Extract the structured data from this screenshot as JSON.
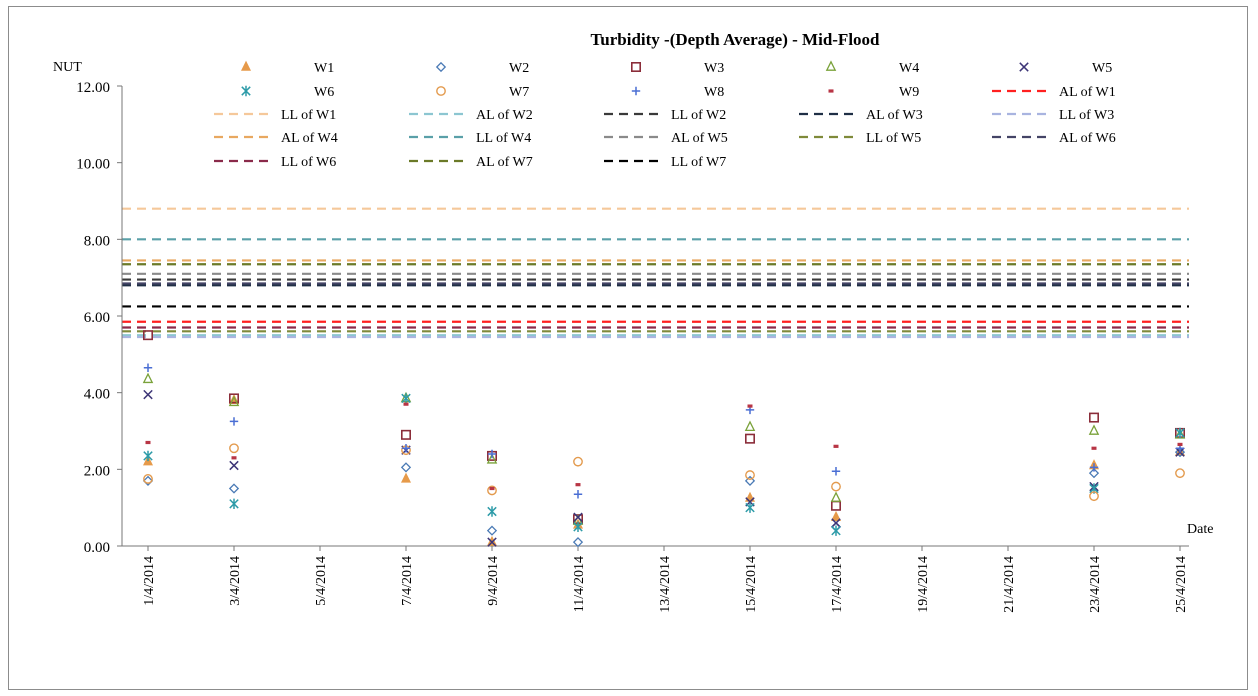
{
  "chart_data": {
    "type": "scatter",
    "title": "Turbidity -(Depth Average) - Mid-Flood",
    "ylabel": "NUT",
    "xlabel": "Date",
    "ylim": [
      0,
      12
    ],
    "yticks": [
      "0.00",
      "2.00",
      "4.00",
      "6.00",
      "8.00",
      "10.00",
      "12.00"
    ],
    "ytick_values": [
      0,
      2,
      4,
      6,
      8,
      10,
      12
    ],
    "xticks": [
      "1/4/2014",
      "3/4/2014",
      "5/4/2014",
      "7/4/2014",
      "9/4/2014",
      "11/4/2014",
      "13/4/2014",
      "15/4/2014",
      "17/4/2014",
      "19/4/2014",
      "21/4/2014",
      "23/4/2014",
      "25/4/2014"
    ],
    "x_day_range": [
      1,
      25
    ],
    "grid": false,
    "legend_position": "top",
    "point_series": [
      {
        "name": "W1",
        "marker": "triangle-filled",
        "color": "#e69a4a",
        "points": [
          [
            1,
            2.2
          ],
          [
            3,
            3.8
          ],
          [
            7,
            1.75
          ],
          [
            9,
            0.1
          ],
          [
            11,
            0.55
          ],
          [
            15,
            1.25
          ],
          [
            17,
            0.75
          ],
          [
            23,
            2.1
          ],
          [
            25,
            2.45
          ]
        ]
      },
      {
        "name": "W2",
        "marker": "diamond",
        "color": "#4a7ab5",
        "points": [
          [
            1,
            1.7
          ],
          [
            3,
            1.5
          ],
          [
            7,
            2.05
          ],
          [
            9,
            0.4
          ],
          [
            11,
            0.1
          ],
          [
            15,
            1.7
          ],
          [
            17,
            0.5
          ],
          [
            23,
            1.9
          ],
          [
            25,
            2.45
          ]
        ]
      },
      {
        "name": "W3",
        "marker": "square",
        "color": "#8b2d3a",
        "points": [
          [
            1,
            5.5
          ],
          [
            3,
            3.85
          ],
          [
            7,
            2.9
          ],
          [
            9,
            2.35
          ],
          [
            11,
            0.7
          ],
          [
            15,
            2.8
          ],
          [
            17,
            1.05
          ],
          [
            23,
            3.35
          ],
          [
            25,
            2.95
          ]
        ]
      },
      {
        "name": "W4",
        "marker": "triangle",
        "color": "#7aa23a",
        "points": [
          [
            1,
            4.35
          ],
          [
            3,
            3.75
          ],
          [
            7,
            3.85
          ],
          [
            9,
            2.25
          ],
          [
            11,
            0.65
          ],
          [
            15,
            3.1
          ],
          [
            17,
            1.25
          ],
          [
            23,
            3.0
          ],
          [
            25,
            2.9
          ]
        ]
      },
      {
        "name": "W5",
        "marker": "x",
        "color": "#3d3577",
        "points": [
          [
            1,
            3.95
          ],
          [
            3,
            2.1
          ],
          [
            7,
            2.5
          ],
          [
            9,
            0.1
          ],
          [
            11,
            0.75
          ],
          [
            15,
            1.15
          ],
          [
            17,
            0.6
          ],
          [
            23,
            1.55
          ],
          [
            25,
            2.45
          ]
        ]
      },
      {
        "name": "W6",
        "marker": "asterisk",
        "color": "#2d9ba8",
        "points": [
          [
            1,
            2.35
          ],
          [
            3,
            1.1
          ],
          [
            7,
            3.85
          ],
          [
            9,
            0.9
          ],
          [
            11,
            0.5
          ],
          [
            15,
            1.0
          ],
          [
            17,
            0.4
          ],
          [
            23,
            1.5
          ],
          [
            25,
            2.95
          ]
        ]
      },
      {
        "name": "W7",
        "marker": "circle",
        "color": "#e39a4d",
        "points": [
          [
            1,
            1.75
          ],
          [
            3,
            2.55
          ],
          [
            7,
            2.5
          ],
          [
            9,
            1.45
          ],
          [
            11,
            2.2
          ],
          [
            15,
            1.85
          ],
          [
            17,
            1.55
          ],
          [
            23,
            1.3
          ],
          [
            25,
            1.9
          ]
        ]
      },
      {
        "name": "W8",
        "marker": "plus",
        "color": "#4a6ed4",
        "points": [
          [
            1,
            4.65
          ],
          [
            3,
            3.25
          ],
          [
            7,
            2.55
          ],
          [
            9,
            2.4
          ],
          [
            11,
            1.35
          ],
          [
            15,
            3.55
          ],
          [
            17,
            1.95
          ],
          [
            23,
            2.05
          ],
          [
            25,
            2.55
          ]
        ]
      },
      {
        "name": "W9",
        "marker": "dash",
        "color": "#b83545",
        "points": [
          [
            1,
            2.7
          ],
          [
            3,
            2.3
          ],
          [
            7,
            3.7
          ],
          [
            9,
            1.5
          ],
          [
            11,
            1.6
          ],
          [
            15,
            3.65
          ],
          [
            17,
            2.6
          ],
          [
            23,
            2.55
          ],
          [
            25,
            2.65
          ]
        ]
      }
    ],
    "limit_lines": [
      {
        "name": "AL of W1",
        "value": 5.85,
        "color": "#ff2020"
      },
      {
        "name": "LL of W1",
        "value": 8.8,
        "color": "#f5c89a"
      },
      {
        "name": "AL of W2",
        "value": 5.5,
        "color": "#8cc6d1"
      },
      {
        "name": "LL of W2",
        "value": 6.95,
        "color": "#3a3a3a"
      },
      {
        "name": "AL of W3",
        "value": 6.8,
        "color": "#1f2f45"
      },
      {
        "name": "LL of W3",
        "value": 5.45,
        "color": "#a9b4e0"
      },
      {
        "name": "AL of W4",
        "value": 7.45,
        "color": "#e8a860"
      },
      {
        "name": "LL of W4",
        "value": 8.0,
        "color": "#5aa0a8"
      },
      {
        "name": "AL of W5",
        "value": 7.1,
        "color": "#8a8a8a"
      },
      {
        "name": "LL of W5",
        "value": 5.6,
        "color": "#7f8a3a"
      },
      {
        "name": "AL of W6",
        "value": 6.85,
        "color": "#444466"
      },
      {
        "name": "LL of W6",
        "value": 5.7,
        "color": "#8a2a4a"
      },
      {
        "name": "AL of W7",
        "value": 7.35,
        "color": "#6b7a28"
      },
      {
        "name": "LL of W7",
        "value": 6.25,
        "color": "#000000"
      }
    ]
  }
}
